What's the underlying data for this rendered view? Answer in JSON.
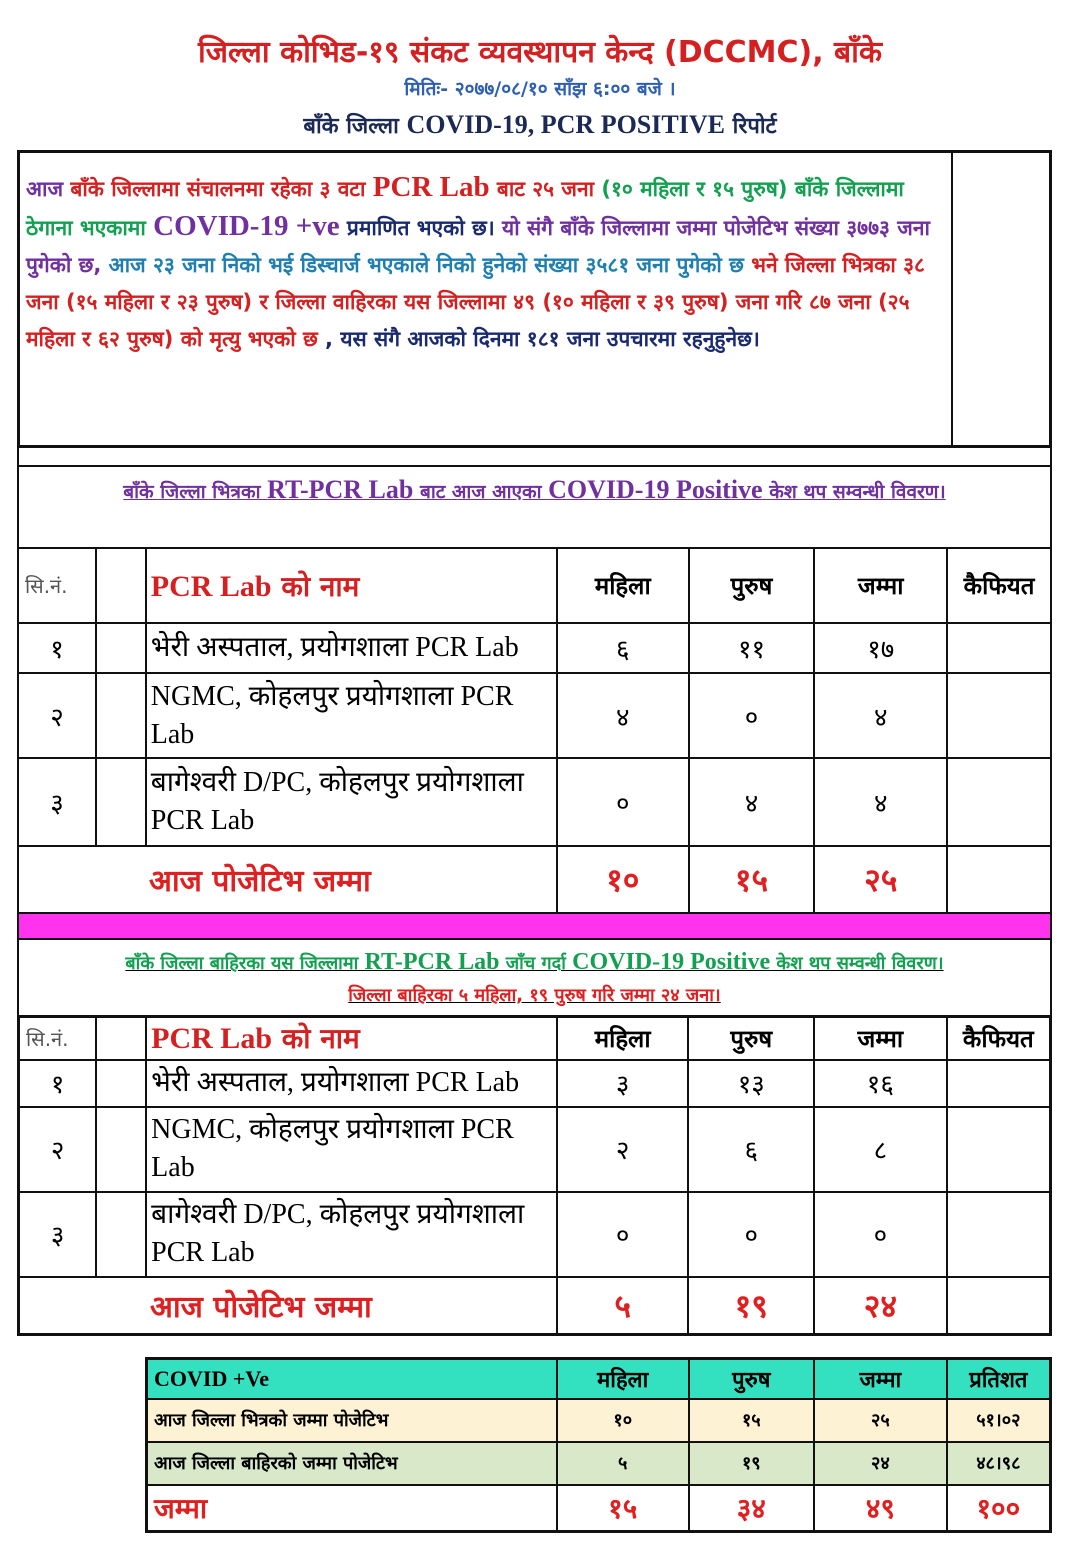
{
  "header": {
    "title": "जिल्ला कोभिड-१९ संकट व्यवस्थापन केन्द (DCCMC), बाँके",
    "date": "मितिः- २०७७/०८/१० साँझ ६:०० बजे ।",
    "subtitle_pre": "बाँके जिल्ला ",
    "subtitle_main": "COVID-19, PCR POSITIVE",
    "subtitle_post": "  रिपोर्ट"
  },
  "colors": {
    "red": "#d42020",
    "purple": "#7030a0",
    "green": "#13a050",
    "blue": "#1f7fb0",
    "navy": "#1a2a6e",
    "magenta": "#ff33ee",
    "teal": "#33e0c0"
  },
  "summary_paragraph": [
    {
      "text": "आज ",
      "color": "#7030a0"
    },
    {
      "text": "बाँके जिल्लामा संचालनमा रहेका ३ वटा ",
      "color": "#d42020"
    },
    {
      "text": "PCR Lab",
      "color": "#d42020",
      "big": true
    },
    {
      "text": " बाट २५ जना ",
      "color": "#d42020"
    },
    {
      "text": "(१० महिला र १५ पुरुष) बाँके जिल्लामा ठेगाना भएकामा  ",
      "color": "#13a050"
    },
    {
      "text": "COVID-19 +ve",
      "color": "#7030a0",
      "big": true
    },
    {
      "text": "  प्रमाणित भएको छ। ",
      "color": "#1a2a6e"
    },
    {
      "text": "यो संगै बाँके जिल्लामा जम्मा पोजेटिभ संख्या ३७७३ जना पुगेको छ, ",
      "color": "#7030a0"
    },
    {
      "text": "आज २३ जना निको भई डिस्चार्ज भएकाले निको हुनेको संख्या ३५८१ जना पुगेको छ ",
      "color": "#1f7fb0"
    },
    {
      "text": "भने जिल्ला भित्रका ३८ जना (१५ महिला र २३ पुरुष)  र जिल्ला वाहिरका यस जिल्लामा ४९ (१० महिला र ३९ पुरुष) जना गरि ८७ जना  (२५ महिला र ६२ पुरुष) को मृत्यु भएको छ ",
      "color": "#d42020"
    },
    {
      "text": ", यस संगै आजको दिनमा १८१ जना उपचारमा रहनुहुनेछ।",
      "color": "#1a2a6e"
    }
  ],
  "section1": {
    "pre": "बाँके जिल्ला भित्रका ",
    "lab": "RT-PCR Lab",
    "mid": " बाट आज आएका ",
    "covid": "COVID-19 Positive",
    "post": " केश थप सम्वन्धी विवरण।"
  },
  "section2": {
    "pre": "बाँके जिल्ला बाहिरका यस जिल्लामा ",
    "lab": "RT-PCR Lab",
    "mid": " जाँच गर्दा ",
    "covid": "COVID-19 Positive",
    "post": " केश थप सम्वन्धी विवरण।",
    "line2": "जिल्ला बाहिरका ५ महिला, १९ पुरुष गरि जम्मा २४ जना।"
  },
  "table_headers": {
    "sn": "सि.नं.",
    "name_pre": "PCR Lab",
    "name_post": " को नाम",
    "female": "महिला",
    "male": "पुरुष",
    "total": "जम्मा",
    "remarks": "कैफियत"
  },
  "table1": {
    "rows": [
      {
        "sn": "१",
        "name": "भेरी अस्पताल, प्रयोगशाला PCR Lab",
        "female": "६",
        "male": "११",
        "total": "१७"
      },
      {
        "sn": "२",
        "name": "NGMC, कोहलपुर प्रयोगशाला PCR Lab",
        "female": "४",
        "male": "०",
        "total": "४"
      },
      {
        "sn": "३",
        "name": "बागेश्वरी D/PC, कोहलपुर प्रयोगशाला PCR Lab",
        "female": "०",
        "male": "४",
        "total": "४"
      }
    ],
    "total": {
      "label": "आज पोजेटिभ जम्मा",
      "female": "१०",
      "male": "१५",
      "total": "२५"
    }
  },
  "table2": {
    "rows": [
      {
        "sn": "१",
        "name": "भेरी अस्पताल, प्रयोगशाला PCR Lab",
        "female": "३",
        "male": "१३",
        "total": "१६"
      },
      {
        "sn": "२",
        "name": "NGMC, कोहलपुर प्रयोगशाला PCR Lab",
        "female": "२",
        "male": "६",
        "total": "८"
      },
      {
        "sn": "३",
        "name": "बागेश्वरी D/PC, कोहलपुर प्रयोगशाला PCR Lab",
        "female": "०",
        "male": "०",
        "total": "०"
      }
    ],
    "total": {
      "label": "आज पोजेटिभ जम्मा",
      "female": "५",
      "male": "१९",
      "total": "२४"
    }
  },
  "summary_table": {
    "headers": [
      "COVID +Ve",
      "महिला",
      "पुरुष",
      "जम्मा",
      "प्रतिशत"
    ],
    "rows": [
      [
        "आज जिल्ला भित्रको जम्मा पोजेटिभ",
        "१०",
        "१५",
        "२५",
        "५१।०२"
      ],
      [
        "आज जिल्ला बाहिरको जम्मा पोजेटिभ",
        "५",
        "१९",
        "२४",
        "४८।९८"
      ],
      [
        "जम्मा",
        "१५",
        "३४",
        "४९",
        "१००"
      ]
    ]
  }
}
